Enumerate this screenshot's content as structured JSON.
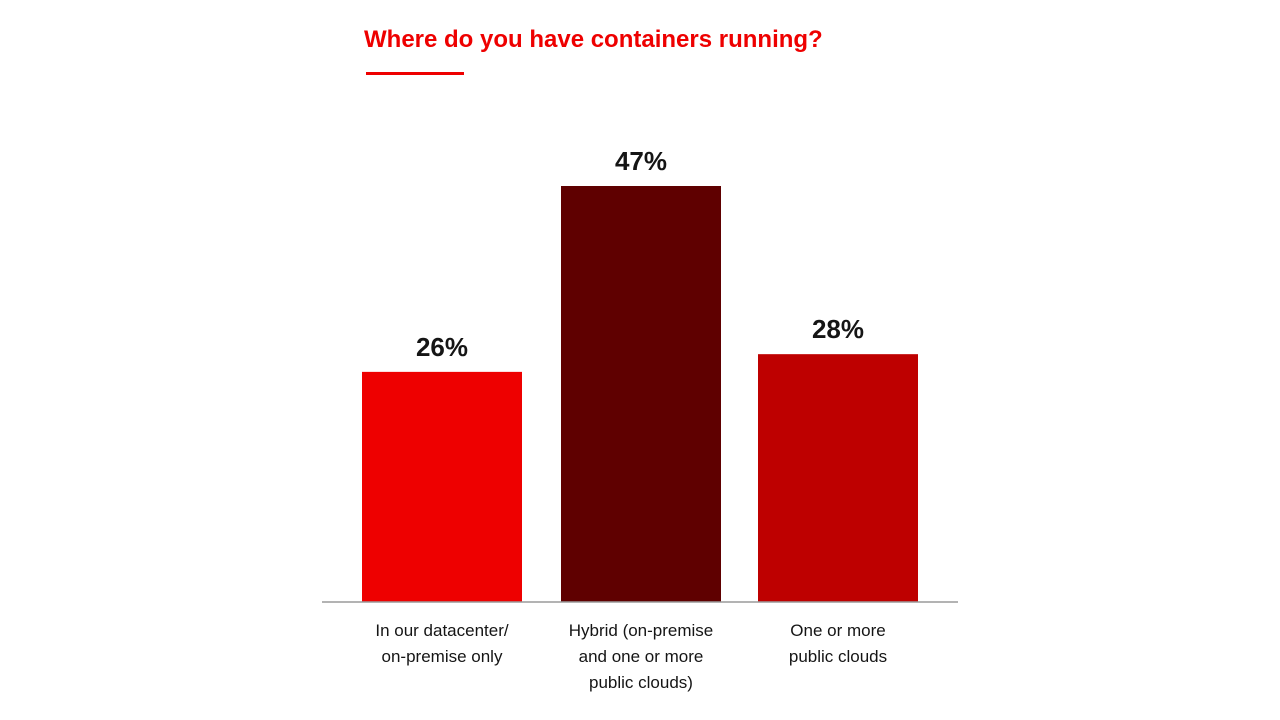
{
  "chart_data": {
    "type": "bar",
    "title": "Where do you have containers running?",
    "categories": [
      [
        "In our datacenter/",
        "on-premise only"
      ],
      [
        "Hybrid (on-premise",
        "and one or more",
        "public clouds)"
      ],
      [
        "One or more",
        "public clouds"
      ]
    ],
    "values": [
      26,
      47,
      28
    ],
    "value_labels": [
      "26%",
      "47%",
      "28%"
    ],
    "colors": [
      "#ee0000",
      "#5f0000",
      "#be0000"
    ],
    "ylim": [
      0,
      47
    ],
    "grid": false,
    "legend": "none",
    "accent_color": "#ee0000"
  }
}
